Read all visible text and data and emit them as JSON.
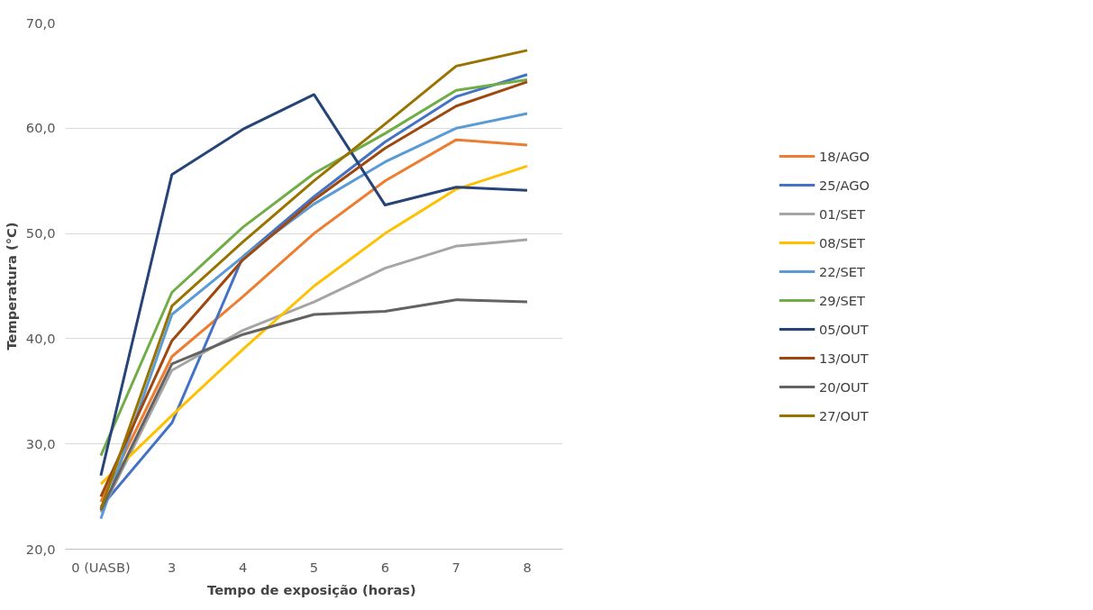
{
  "chart_data": {
    "type": "line",
    "xlabel": "Tempo de exposição  (horas)",
    "ylabel": "Temperatura (°C)",
    "categories": [
      "0 (UASB)",
      "3",
      "4",
      "5",
      "6",
      "7",
      "8"
    ],
    "ylim": [
      20,
      70
    ],
    "yticks": [
      {
        "value": 20,
        "label": "20,0"
      },
      {
        "value": 30,
        "label": "30,0"
      },
      {
        "value": 40,
        "label": "40,0"
      },
      {
        "value": 50,
        "label": "50,0"
      },
      {
        "value": 60,
        "label": "60,0"
      },
      {
        "value": 70,
        "label": "70,0"
      }
    ],
    "grid": "y",
    "legend": "right",
    "marker": "none",
    "line_style": "solid",
    "series": [
      {
        "name": "18/AGO",
        "color": "#ed7d31",
        "values": [
          24.5,
          38.3,
          44,
          50,
          55,
          58.9,
          58.4
        ]
      },
      {
        "name": "25/AGO",
        "color": "#4472c4",
        "values": [
          24,
          32,
          47.8,
          53.5,
          58.7,
          63,
          65.1
        ]
      },
      {
        "name": "01/SET",
        "color": "#a5a5a5",
        "values": [
          23.5,
          37,
          40.8,
          43.5,
          46.7,
          48.8,
          49.4
        ]
      },
      {
        "name": "08/SET",
        "color": "#ffc000",
        "values": [
          26.2,
          32.7,
          39,
          45,
          50,
          54.2,
          56.4
        ]
      },
      {
        "name": "22/SET",
        "color": "#5b9bd5",
        "values": [
          22.9,
          42.3,
          47.8,
          52.8,
          56.8,
          60,
          61.4
        ]
      },
      {
        "name": "29/SET",
        "color": "#70ad47",
        "values": [
          28.9,
          44.4,
          50.6,
          55.7,
          59.5,
          63.6,
          64.6
        ]
      },
      {
        "name": "05/OUT",
        "color": "#264478",
        "values": [
          27,
          55.6,
          59.9,
          63.2,
          52.7,
          54.4,
          54.1
        ]
      },
      {
        "name": "13/OUT",
        "color": "#9e480e",
        "values": [
          25,
          39.8,
          47.5,
          53.2,
          58.1,
          62.1,
          64.4
        ]
      },
      {
        "name": "20/OUT",
        "color": "#636363",
        "values": [
          23.7,
          37.6,
          40.4,
          42.3,
          42.6,
          43.7,
          43.5
        ]
      },
      {
        "name": "27/OUT",
        "color": "#997300",
        "values": [
          23.8,
          43.1,
          49.2,
          55,
          60.4,
          65.9,
          67.4
        ]
      }
    ]
  }
}
